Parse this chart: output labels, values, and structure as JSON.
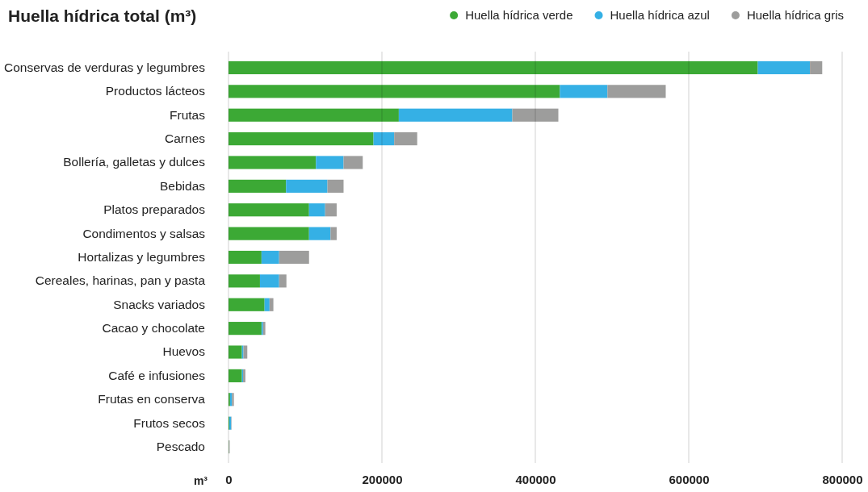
{
  "chart_data": {
    "type": "bar",
    "orientation": "horizontal",
    "stacked": true,
    "title": "Huella hídrica total (m³)",
    "xlabel": "m³",
    "categories": [
      "Conservas de verduras y legumbres",
      "Productos lácteos",
      "Frutas",
      "Carnes",
      "Bollería, galletas y dulces",
      "Bebidas",
      "Platos preparados",
      "Condimentos y salsas",
      "Hortalizas y legumbres",
      "Cereales, harinas, pan y pasta",
      "Snacks variados",
      "Cacao y chocolate",
      "Huevos",
      "Café e infusiones",
      "Frutas en conserva",
      "Frutos secos",
      "Pescado"
    ],
    "series": [
      {
        "name": "Huella hídrica verde",
        "color": "#3ca935",
        "values": [
          690000,
          432000,
          222000,
          189000,
          114000,
          75000,
          105000,
          105000,
          43000,
          41000,
          47000,
          43000,
          17500,
          17500,
          2000,
          1000,
          500
        ]
      },
      {
        "name": "Huella hídrica azul",
        "color": "#35b0e5",
        "values": [
          68000,
          62000,
          148000,
          27000,
          36000,
          54000,
          21000,
          28000,
          23000,
          25000,
          6500,
          2000,
          2000,
          1500,
          2500,
          2500,
          0
        ]
      },
      {
        "name": "Huella hídrica gris",
        "color": "#9d9d9c",
        "values": [
          16000,
          76000,
          60000,
          30000,
          25000,
          21000,
          15000,
          8000,
          39000,
          9500,
          5000,
          3000,
          5000,
          3000,
          2500,
          500,
          1000
        ]
      }
    ],
    "xlim": [
      0,
      800000
    ],
    "xticks": [
      0,
      200000,
      400000,
      600000,
      800000
    ],
    "grid": "x",
    "legend": "top right"
  }
}
